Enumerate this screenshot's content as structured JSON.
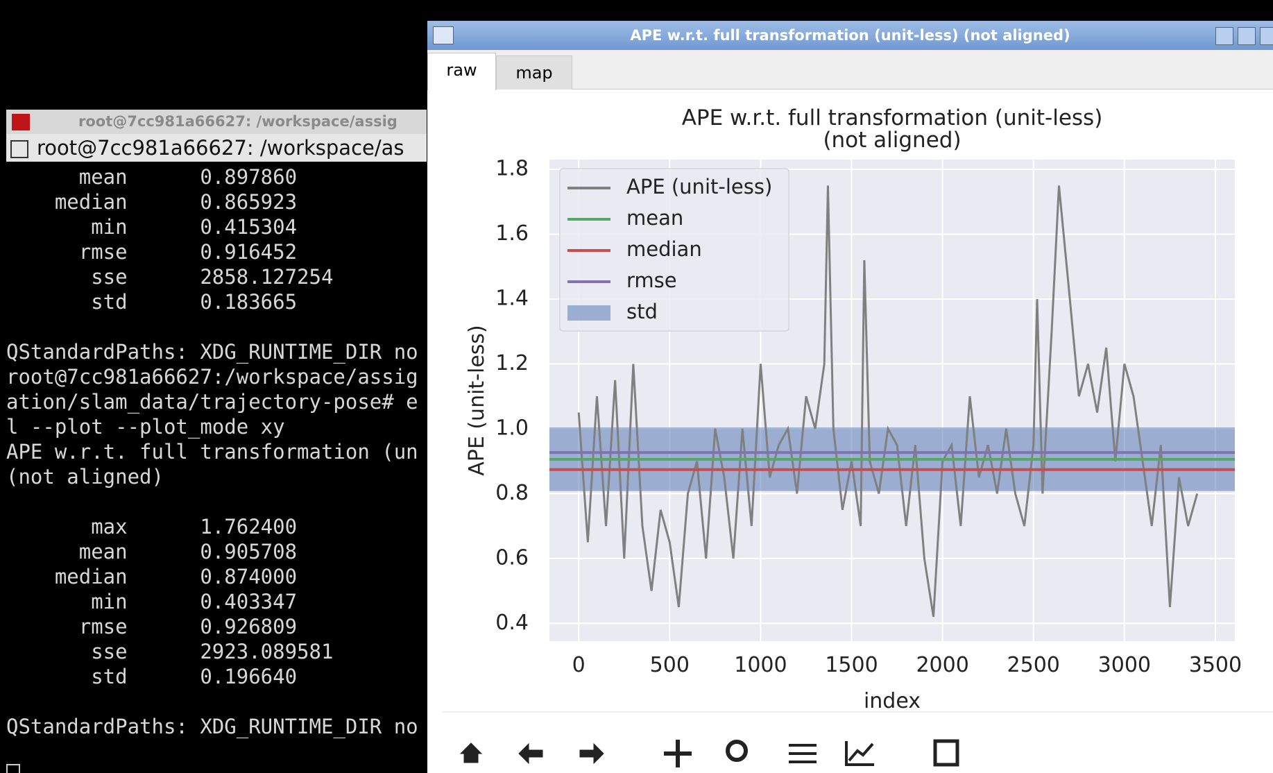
{
  "terminal": {
    "title": "root@7cc981a66627: /workspace/assig",
    "tab": "root@7cc981a66627: /workspace/as",
    "blocks": [
      [
        "      mean      0.897860",
        "    median      0.865923",
        "       min      0.415304",
        "      rmse      0.916452",
        "       sse      2858.127254",
        "       std      0.183665"
      ],
      [
        "QStandardPaths: XDG_RUNTIME_DIR no",
        "root@7cc981a66627:/workspace/assig",
        "ation/slam_data/trajectory-pose# e",
        "l --plot --plot_mode xy",
        "APE w.r.t. full transformation (un",
        "(not aligned)"
      ],
      [
        "       max      1.762400",
        "      mean      0.905708",
        "    median      0.874000",
        "       min      0.403347",
        "      rmse      0.926809",
        "       sse      2923.089581",
        "       std      0.196640"
      ],
      [
        "QStandardPaths: XDG_RUNTIME_DIR no"
      ]
    ]
  },
  "window": {
    "title": "APE w.r.t. full transformation (unit-less) (not aligned)",
    "tabs": [
      "raw",
      "map"
    ]
  },
  "chart_data": {
    "type": "line",
    "title": "APE w.r.t. full transformation (unit-less)",
    "subtitle": "(not aligned)",
    "x_label": "index",
    "y_label": "APE (unit-less)",
    "xlim": [
      -161,
      3607
    ],
    "ylim": [
      0.345,
      1.83
    ],
    "xticks": [
      0,
      500,
      1000,
      1500,
      2000,
      2500,
      3000,
      3500
    ],
    "yticks": [
      0.4,
      0.6,
      0.8,
      {
        "value": 1,
        "label": "1.0"
      },
      1.2,
      1.4,
      1.6,
      1.8
    ],
    "grid": true,
    "legend": "upper left",
    "x": [
      0,
      50,
      100,
      150,
      200,
      250,
      300,
      350,
      400,
      450,
      500,
      550,
      600,
      650,
      700,
      750,
      800,
      850,
      900,
      950,
      1000,
      1050,
      1100,
      1150,
      1200,
      1250,
      1300,
      1350,
      1370,
      1400,
      1450,
      1500,
      1550,
      1570,
      1600,
      1650,
      1700,
      1750,
      1800,
      1850,
      1900,
      1950,
      2000,
      2050,
      2100,
      2150,
      2200,
      2250,
      2300,
      2350,
      2400,
      2450,
      2500,
      2520,
      2550,
      2600,
      2640,
      2700,
      2750,
      2800,
      2850,
      2900,
      2950,
      3000,
      3050,
      3100,
      3150,
      3200,
      3250,
      3300,
      3350,
      3400
    ],
    "series": [
      {
        "name": "APE (unit-less)",
        "color": "#808080",
        "values": [
          1.05,
          0.65,
          1.1,
          0.7,
          1.15,
          0.6,
          1.2,
          0.7,
          0.5,
          0.75,
          0.65,
          0.45,
          0.8,
          0.9,
          0.6,
          1.0,
          0.85,
          0.6,
          1.0,
          0.7,
          1.2,
          0.85,
          0.95,
          1.0,
          0.8,
          1.1,
          1.0,
          1.2,
          1.75,
          1.0,
          0.75,
          0.9,
          0.7,
          1.52,
          0.9,
          0.8,
          1.0,
          0.95,
          0.7,
          0.95,
          0.6,
          0.42,
          0.9,
          0.95,
          0.7,
          1.1,
          0.85,
          0.95,
          0.8,
          1.0,
          0.8,
          0.7,
          0.95,
          1.4,
          0.8,
          1.3,
          1.75,
          1.4,
          1.1,
          1.2,
          1.05,
          1.25,
          0.9,
          1.2,
          1.1,
          0.9,
          0.7,
          0.95,
          0.45,
          0.85,
          0.7,
          0.8
        ]
      },
      {
        "name": "mean",
        "color": "#55a868",
        "value": 0.905708
      },
      {
        "name": "median",
        "color": "#c44e52",
        "value": 0.874
      },
      {
        "name": "rmse",
        "color": "#8172b2",
        "value": 0.926809
      },
      {
        "name": "std",
        "color": "#4c72b0",
        "range": [
          0.808,
          1.004
        ]
      }
    ]
  }
}
